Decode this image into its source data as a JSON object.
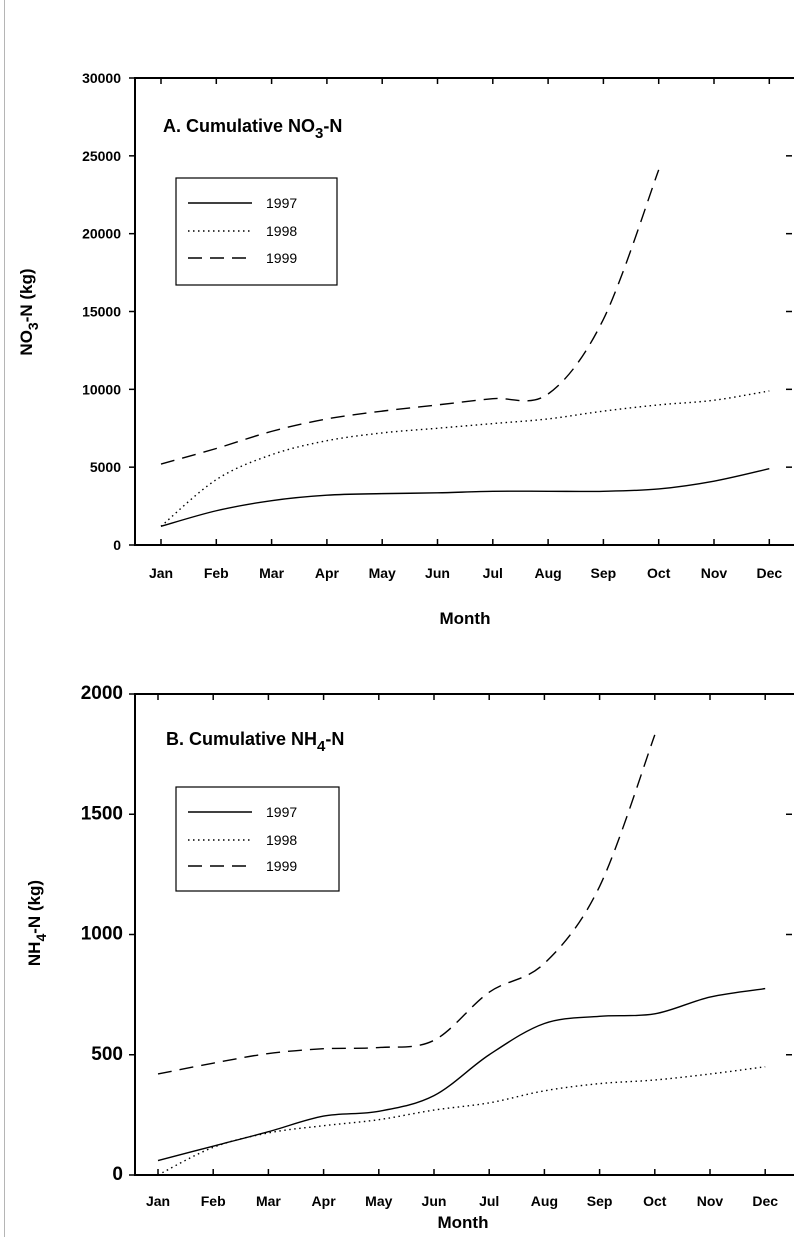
{
  "chart_data": [
    {
      "type": "line",
      "title": "A.  Cumulative NO",
      "title_sub": "3",
      "title_suffix": "-N",
      "xlabel": "Month",
      "ylabel_main": "NO",
      "ylabel_sub": "3",
      "ylabel_suffix": "-N (kg)",
      "categories": [
        "Jan",
        "Feb",
        "Mar",
        "Apr",
        "May",
        "Jun",
        "Jul",
        "Aug",
        "Sep",
        "Oct",
        "Nov",
        "Dec"
      ],
      "ylim": [
        0,
        30000
      ],
      "yticks": [
        0,
        5000,
        10000,
        15000,
        20000,
        25000,
        30000
      ],
      "ytick_labels": [
        "0",
        "5000",
        "10000",
        "15000",
        "20000",
        "25000",
        "30000"
      ],
      "grid": false,
      "legend_position": "upper-left",
      "series": [
        {
          "name": "1997",
          "style": "solid",
          "values": [
            1200,
            2200,
            2850,
            3200,
            3300,
            3350,
            3450,
            3450,
            3450,
            3600,
            4100,
            4900
          ]
        },
        {
          "name": "1998",
          "style": "dotted",
          "values": [
            1200,
            4200,
            5800,
            6700,
            7200,
            7500,
            7800,
            8100,
            8600,
            9000,
            9300,
            9900
          ]
        },
        {
          "name": "1999",
          "style": "dashed",
          "values": [
            5200,
            6200,
            7300,
            8100,
            8600,
            9000,
            9400,
            9700,
            14500,
            24100,
            null,
            null
          ]
        }
      ]
    },
    {
      "type": "line",
      "title": "B.  Cumulative NH",
      "title_sub": "4",
      "title_suffix": "-N",
      "xlabel": "Month",
      "ylabel_main": "NH",
      "ylabel_sub": "4",
      "ylabel_suffix": "-N (kg)",
      "categories": [
        "Jan",
        "Feb",
        "Mar",
        "Apr",
        "May",
        "Jun",
        "Jul",
        "Aug",
        "Sep",
        "Oct",
        "Nov",
        "Dec"
      ],
      "ylim": [
        0,
        2000
      ],
      "yticks": [
        0,
        500,
        1000,
        1500,
        2000
      ],
      "ytick_labels": [
        "0",
        "500",
        "1000",
        "1500",
        "2000"
      ],
      "grid": false,
      "legend_position": "upper-left",
      "series": [
        {
          "name": "1997",
          "style": "solid",
          "values": [
            60,
            120,
            180,
            245,
            265,
            330,
            500,
            630,
            660,
            670,
            740,
            775
          ]
        },
        {
          "name": "1998",
          "style": "dotted",
          "values": [
            0,
            115,
            175,
            205,
            230,
            270,
            300,
            350,
            380,
            395,
            420,
            450
          ]
        },
        {
          "name": "1999",
          "style": "dashed",
          "values": [
            420,
            465,
            505,
            525,
            530,
            560,
            760,
            880,
            1200,
            1830,
            null,
            null
          ]
        }
      ]
    }
  ]
}
